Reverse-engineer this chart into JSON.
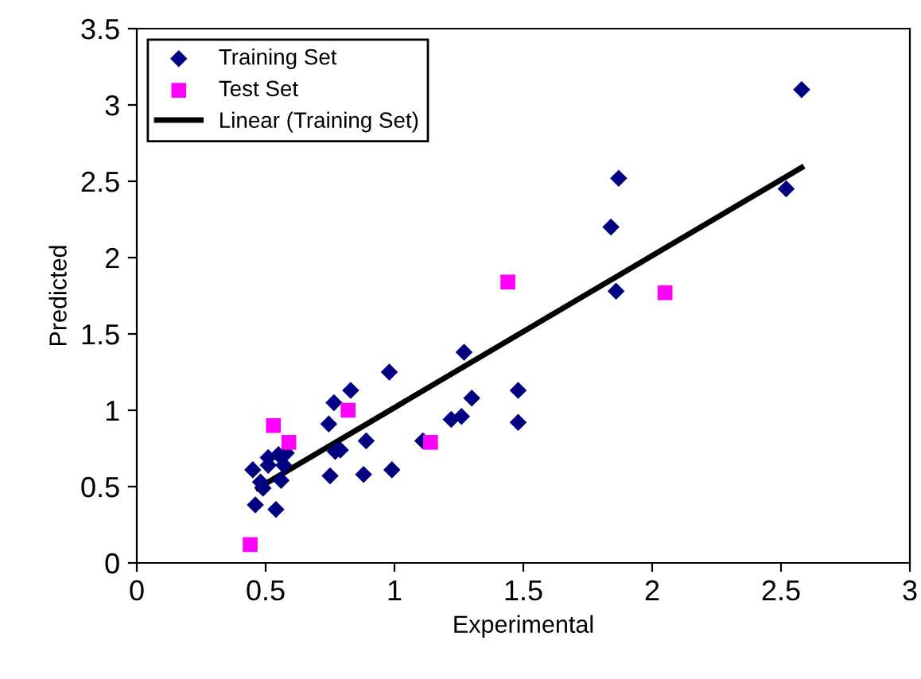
{
  "chart_data": {
    "type": "scatter",
    "xlabel": "Experimental",
    "ylabel": "Predicted",
    "xlim": [
      0,
      3
    ],
    "ylim": [
      0,
      3.5
    ],
    "xticks": [
      0,
      0.5,
      1,
      1.5,
      2,
      2.5,
      3
    ],
    "yticks": [
      0,
      0.5,
      1,
      1.5,
      2,
      2.5,
      3,
      3.5
    ],
    "grid": false,
    "legend": "top left",
    "series": [
      {
        "name": "Training Set",
        "marker": "diamond",
        "color": "#000080",
        "x": [
          0.45,
          0.46,
          0.48,
          0.49,
          0.51,
          0.51,
          0.54,
          0.55,
          0.56,
          0.57,
          0.58,
          0.745,
          0.75,
          0.765,
          0.77,
          0.79,
          0.83,
          0.88,
          0.89,
          0.98,
          0.99,
          1.11,
          1.22,
          1.26,
          1.27,
          1.3,
          1.48,
          1.48,
          1.87,
          1.84,
          1.86,
          2.52,
          2.58
        ],
        "values": [
          0.61,
          0.38,
          0.53,
          0.49,
          0.69,
          0.64,
          0.35,
          0.71,
          0.54,
          0.64,
          0.72,
          0.91,
          0.57,
          1.05,
          0.73,
          0.74,
          1.13,
          0.58,
          0.8,
          1.25,
          0.61,
          0.8,
          0.94,
          0.96,
          1.38,
          1.08,
          1.13,
          0.92,
          2.52,
          2.2,
          1.78,
          2.45,
          3.1
        ]
      },
      {
        "name": "Test Set",
        "marker": "square",
        "color": "#ff00ff",
        "x": [
          0.44,
          0.53,
          0.59,
          0.82,
          1.14,
          1.44,
          2.05
        ],
        "values": [
          0.12,
          0.9,
          0.79,
          1.0,
          0.79,
          1.84,
          1.77
        ]
      },
      {
        "name": "Linear (Training Set)",
        "type": "line",
        "marker": "none",
        "line_style": "solid",
        "color": "#000000",
        "x": [
          0.47,
          2.58
        ],
        "values": [
          0.49,
          2.59
        ]
      }
    ]
  }
}
